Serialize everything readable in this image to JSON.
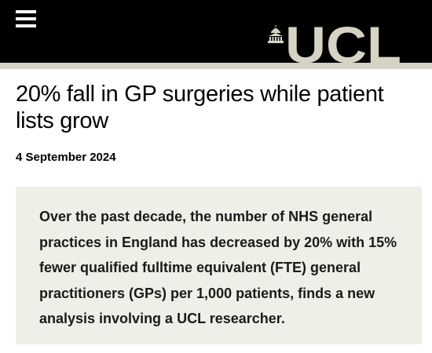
{
  "header": {
    "menu_icon": "hamburger-menu-icon",
    "logo_text": "UCL",
    "logo_icon": "ucl-portico-icon",
    "background_color": "#000000",
    "stripe_color": "#d6d2c4",
    "logo_color": "#d6d2c4"
  },
  "article": {
    "title": "20% fall in GP surgeries while patient lists grow",
    "date": "4 September 2024",
    "summary": "Over the past decade, the number of NHS general practices in England has decreased by 20% with 15% fewer qualified fulltime equivalent (FTE) general practitioners (GPs) per 1,000 patients, finds a new analysis involving a UCL researcher.",
    "summary_background": "#efefe8"
  }
}
